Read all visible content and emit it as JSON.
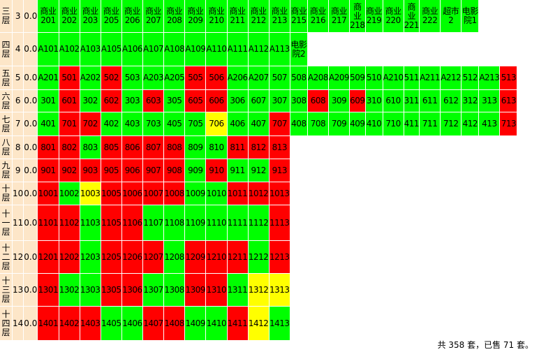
{
  "rows": [
    {
      "floor": "三层",
      "num": "3",
      "area": "0.0",
      "cells": [
        {
          "label": "商业201",
          "color": "#00ff00"
        },
        {
          "label": "商业202",
          "color": "#00ff00"
        },
        {
          "label": "商业203",
          "color": "#00ff00"
        },
        {
          "label": "商业205",
          "color": "#00ff00"
        },
        {
          "label": "商业206",
          "color": "#00ff00"
        },
        {
          "label": "商业207",
          "color": "#00ff00"
        },
        {
          "label": "商业208",
          "color": "#00ff00"
        },
        {
          "label": "商业209",
          "color": "#00ff00"
        },
        {
          "label": "商业210",
          "color": "#00ff00"
        },
        {
          "label": "商业211",
          "color": "#00ff00"
        },
        {
          "label": "商业212",
          "color": "#00ff00"
        },
        {
          "label": "商业213",
          "color": "#00ff00"
        },
        {
          "label": "商业215",
          "color": "#00ff00"
        },
        {
          "label": "商业216",
          "color": "#00ff00"
        },
        {
          "label": "商业217",
          "color": "#00ff00"
        },
        {
          "label": "商业218",
          "color": "#00ff00"
        },
        {
          "label": "商业219",
          "color": "#00ff00"
        },
        {
          "label": "商业220",
          "color": "#00ff00"
        },
        {
          "label": "商业221",
          "color": "#00ff00"
        },
        {
          "label": "商业222",
          "color": "#00ff00"
        },
        {
          "label": "超市2",
          "color": "#00ff00"
        },
        {
          "label": "电影院1",
          "color": "#00ff00"
        }
      ]
    },
    {
      "floor": "四层",
      "num": "4",
      "area": "0.0",
      "cells": [
        {
          "label": "A101",
          "color": "#00ff00"
        },
        {
          "label": "A102",
          "color": "#00ff00"
        },
        {
          "label": "A103",
          "color": "#00ff00"
        },
        {
          "label": "A105",
          "color": "#00ff00"
        },
        {
          "label": "A106",
          "color": "#00ff00"
        },
        {
          "label": "A107",
          "color": "#00ff00"
        },
        {
          "label": "A108",
          "color": "#00ff00"
        },
        {
          "label": "A109",
          "color": "#00ff00"
        },
        {
          "label": "A110",
          "color": "#00ff00"
        },
        {
          "label": "A111",
          "color": "#00ff00"
        },
        {
          "label": "A112",
          "color": "#00ff00"
        },
        {
          "label": "A113",
          "color": "#00ff00"
        },
        {
          "label": "电影院2",
          "color": "#00ff00"
        }
      ]
    },
    {
      "floor": "五层",
      "num": "5",
      "area": "0.0",
      "cells": [
        {
          "label": "A201",
          "color": "#00ff00"
        },
        {
          "label": "501",
          "color": "#ff0000"
        },
        {
          "label": "A202",
          "color": "#00ff00"
        },
        {
          "label": "502",
          "color": "#ff0000"
        },
        {
          "label": "503",
          "color": "#00ff00"
        },
        {
          "label": "A203",
          "color": "#00ff00"
        },
        {
          "label": "A205",
          "color": "#00ff00"
        },
        {
          "label": "505",
          "color": "#ff0000"
        },
        {
          "label": "506",
          "color": "#ff0000"
        },
        {
          "label": "A206",
          "color": "#00ff00"
        },
        {
          "label": "A207",
          "color": "#00ff00"
        },
        {
          "label": "507",
          "color": "#00ff00"
        },
        {
          "label": "508",
          "color": "#00ff00"
        },
        {
          "label": "A208",
          "color": "#00ff00"
        },
        {
          "label": "A209",
          "color": "#00ff00"
        },
        {
          "label": "509",
          "color": "#00ff00"
        },
        {
          "label": "510",
          "color": "#00ff00"
        },
        {
          "label": "A210",
          "color": "#00ff00"
        },
        {
          "label": "511",
          "color": "#00ff00"
        },
        {
          "label": "A211",
          "color": "#00ff00"
        },
        {
          "label": "A212",
          "color": "#00ff00"
        },
        {
          "label": "512",
          "color": "#00ff00"
        },
        {
          "label": "A213",
          "color": "#00ff00"
        },
        {
          "label": "513",
          "color": "#ff0000"
        }
      ]
    },
    {
      "floor": "六层",
      "num": "6",
      "area": "0.0",
      "cells": [
        {
          "label": "301",
          "color": "#00ff00"
        },
        {
          "label": "601",
          "color": "#ff0000"
        },
        {
          "label": "302",
          "color": "#00ff00"
        },
        {
          "label": "602",
          "color": "#ff0000"
        },
        {
          "label": "303",
          "color": "#00ff00"
        },
        {
          "label": "603",
          "color": "#ff0000"
        },
        {
          "label": "305",
          "color": "#00ff00"
        },
        {
          "label": "605",
          "color": "#ff0000"
        },
        {
          "label": "606",
          "color": "#ff0000"
        },
        {
          "label": "306",
          "color": "#00ff00"
        },
        {
          "label": "607",
          "color": "#00ff00"
        },
        {
          "label": "307",
          "color": "#00ff00"
        },
        {
          "label": "308",
          "color": "#00ff00"
        },
        {
          "label": "608",
          "color": "#ff0000"
        },
        {
          "label": "309",
          "color": "#00ff00"
        },
        {
          "label": "609",
          "color": "#ff0000"
        },
        {
          "label": "310",
          "color": "#00ff00"
        },
        {
          "label": "610",
          "color": "#00ff00"
        },
        {
          "label": "311",
          "color": "#00ff00"
        },
        {
          "label": "611",
          "color": "#00ff00"
        },
        {
          "label": "612",
          "color": "#00ff00"
        },
        {
          "label": "312",
          "color": "#00ff00"
        },
        {
          "label": "313",
          "color": "#00ff00"
        },
        {
          "label": "613",
          "color": "#ff0000"
        }
      ]
    },
    {
      "floor": "七层",
      "num": "7",
      "area": "0.0",
      "cells": [
        {
          "label": "401",
          "color": "#00ff00"
        },
        {
          "label": "701",
          "color": "#ff0000"
        },
        {
          "label": "702",
          "color": "#ff0000"
        },
        {
          "label": "402",
          "color": "#00ff00"
        },
        {
          "label": "403",
          "color": "#00ff00"
        },
        {
          "label": "703",
          "color": "#00ff00"
        },
        {
          "label": "405",
          "color": "#00ff00"
        },
        {
          "label": "705",
          "color": "#00ff00"
        },
        {
          "label": "706",
          "color": "#ffff00"
        },
        {
          "label": "406",
          "color": "#00ff00"
        },
        {
          "label": "407",
          "color": "#00ff00"
        },
        {
          "label": "707",
          "color": "#ff0000"
        },
        {
          "label": "408",
          "color": "#00ff00"
        },
        {
          "label": "708",
          "color": "#00ff00"
        },
        {
          "label": "709",
          "color": "#00ff00"
        },
        {
          "label": "409",
          "color": "#00ff00"
        },
        {
          "label": "410",
          "color": "#00ff00"
        },
        {
          "label": "710",
          "color": "#00ff00"
        },
        {
          "label": "411",
          "color": "#00ff00"
        },
        {
          "label": "711",
          "color": "#00ff00"
        },
        {
          "label": "712",
          "color": "#00ff00"
        },
        {
          "label": "412",
          "color": "#00ff00"
        },
        {
          "label": "413",
          "color": "#00ff00"
        },
        {
          "label": "713",
          "color": "#ff0000"
        }
      ]
    },
    {
      "floor": "八层",
      "num": "8",
      "area": "0.0",
      "cells": [
        {
          "label": "801",
          "color": "#ff0000"
        },
        {
          "label": "802",
          "color": "#ff0000"
        },
        {
          "label": "803",
          "color": "#00ff00"
        },
        {
          "label": "805",
          "color": "#ff0000"
        },
        {
          "label": "806",
          "color": "#ff0000"
        },
        {
          "label": "807",
          "color": "#ff0000"
        },
        {
          "label": "808",
          "color": "#ff0000"
        },
        {
          "label": "809",
          "color": "#00ff00"
        },
        {
          "label": "810",
          "color": "#00ff00"
        },
        {
          "label": "811",
          "color": "#ff0000"
        },
        {
          "label": "812",
          "color": "#ff0000"
        },
        {
          "label": "813",
          "color": "#ff0000"
        }
      ]
    },
    {
      "floor": "九层",
      "num": "9",
      "area": "0.0",
      "cells": [
        {
          "label": "901",
          "color": "#ff0000"
        },
        {
          "label": "902",
          "color": "#ff0000"
        },
        {
          "label": "903",
          "color": "#ff0000"
        },
        {
          "label": "905",
          "color": "#ff0000"
        },
        {
          "label": "906",
          "color": "#ff0000"
        },
        {
          "label": "907",
          "color": "#ff0000"
        },
        {
          "label": "908",
          "color": "#ff0000"
        },
        {
          "label": "909",
          "color": "#00ff00"
        },
        {
          "label": "910",
          "color": "#ff0000"
        },
        {
          "label": "911",
          "color": "#00ff00"
        },
        {
          "label": "912",
          "color": "#00ff00"
        },
        {
          "label": "913",
          "color": "#ff0000"
        }
      ]
    },
    {
      "floor": "十层",
      "num": "10",
      "area": "0.0",
      "cells": [
        {
          "label": "1001",
          "color": "#ff0000"
        },
        {
          "label": "1002",
          "color": "#00ff00"
        },
        {
          "label": "1003",
          "color": "#ffff00"
        },
        {
          "label": "1005",
          "color": "#ff0000"
        },
        {
          "label": "1006",
          "color": "#ff0000"
        },
        {
          "label": "1007",
          "color": "#ff0000"
        },
        {
          "label": "1008",
          "color": "#ff0000"
        },
        {
          "label": "1009",
          "color": "#00ff00"
        },
        {
          "label": "1010",
          "color": "#00ff00"
        },
        {
          "label": "1011",
          "color": "#ff0000"
        },
        {
          "label": "1012",
          "color": "#ff0000"
        },
        {
          "label": "1013",
          "color": "#ff0000"
        }
      ]
    },
    {
      "floor": "十一层",
      "num": "11",
      "area": "0.0",
      "cells": [
        {
          "label": "1101",
          "color": "#ff0000"
        },
        {
          "label": "1102",
          "color": "#ff0000"
        },
        {
          "label": "1103",
          "color": "#00ff00"
        },
        {
          "label": "1105",
          "color": "#ff0000"
        },
        {
          "label": "1106",
          "color": "#ff0000"
        },
        {
          "label": "1107",
          "color": "#00ff00"
        },
        {
          "label": "1108",
          "color": "#00ff00"
        },
        {
          "label": "1109",
          "color": "#00ff00"
        },
        {
          "label": "1110",
          "color": "#00ff00"
        },
        {
          "label": "1111",
          "color": "#00ff00"
        },
        {
          "label": "1112",
          "color": "#00ff00"
        },
        {
          "label": "1113",
          "color": "#ff0000"
        }
      ]
    },
    {
      "floor": "十二层",
      "num": "12",
      "area": "0.0",
      "cells": [
        {
          "label": "1201",
          "color": "#ff0000"
        },
        {
          "label": "1202",
          "color": "#ff0000"
        },
        {
          "label": "1203",
          "color": "#00ff00"
        },
        {
          "label": "1205",
          "color": "#ff0000"
        },
        {
          "label": "1206",
          "color": "#ff0000"
        },
        {
          "label": "1207",
          "color": "#ff0000"
        },
        {
          "label": "1208",
          "color": "#00ff00"
        },
        {
          "label": "1209",
          "color": "#ff0000"
        },
        {
          "label": "1210",
          "color": "#ff0000"
        },
        {
          "label": "1211",
          "color": "#ff0000"
        },
        {
          "label": "1212",
          "color": "#00ff00"
        },
        {
          "label": "1213",
          "color": "#ff0000"
        }
      ]
    },
    {
      "floor": "十三层",
      "num": "13",
      "area": "0.0",
      "cells": [
        {
          "label": "1301",
          "color": "#ff0000"
        },
        {
          "label": "1302",
          "color": "#00ff00"
        },
        {
          "label": "1303",
          "color": "#00ff00"
        },
        {
          "label": "1305",
          "color": "#ff0000"
        },
        {
          "label": "1306",
          "color": "#ff0000"
        },
        {
          "label": "1307",
          "color": "#00ff00"
        },
        {
          "label": "1308",
          "color": "#00ff00"
        },
        {
          "label": "1309",
          "color": "#ff0000"
        },
        {
          "label": "1310",
          "color": "#ff0000"
        },
        {
          "label": "1311",
          "color": "#00ff00"
        },
        {
          "label": "1312",
          "color": "#ffff00"
        },
        {
          "label": "1313",
          "color": "#ffff00"
        }
      ]
    },
    {
      "floor": "十四层",
      "num": "14",
      "area": "0.0",
      "cells": [
        {
          "label": "1401",
          "color": "#ff0000"
        },
        {
          "label": "1402",
          "color": "#ff0000"
        },
        {
          "label": "1403",
          "color": "#ff0000"
        },
        {
          "label": "1405",
          "color": "#00ff00"
        },
        {
          "label": "1406",
          "color": "#00ff00"
        },
        {
          "label": "1407",
          "color": "#ff0000"
        },
        {
          "label": "1408",
          "color": "#ff0000"
        },
        {
          "label": "1409",
          "color": "#00ff00"
        },
        {
          "label": "1410",
          "color": "#00ff00"
        },
        {
          "label": "1411",
          "color": "#ff0000"
        },
        {
          "label": "1412",
          "color": "#ffff00"
        },
        {
          "label": "1413",
          "color": "#00ff00"
        }
      ]
    }
  ],
  "footer": "共 358 套，已售 71 套。"
}
